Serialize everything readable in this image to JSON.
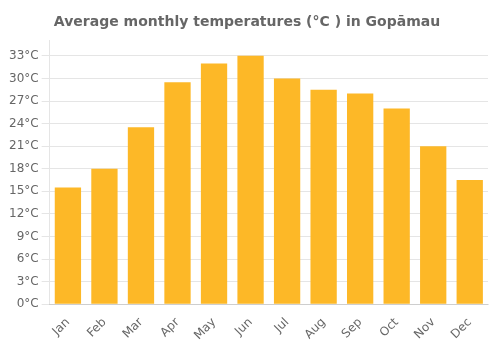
{
  "chart_data": {
    "type": "bar",
    "title": "Average monthly temperatures (°C ) in Gopāmau",
    "categories": [
      "Jan",
      "Feb",
      "Mar",
      "Apr",
      "May",
      "Jun",
      "Jul",
      "Aug",
      "Sep",
      "Oct",
      "Nov",
      "Dec"
    ],
    "values": [
      15.5,
      18.0,
      23.5,
      29.5,
      32.0,
      33.0,
      30.0,
      28.5,
      28.0,
      26.0,
      21.0,
      16.5
    ],
    "color": "#FDB827",
    "ylim": [
      0,
      35
    ],
    "yticks": [
      {
        "value": 0,
        "label": "0°C"
      },
      {
        "value": 3,
        "label": "3°C"
      },
      {
        "value": 6,
        "label": "6°C"
      },
      {
        "value": 9,
        "label": "9°C"
      },
      {
        "value": 12,
        "label": "12°C"
      },
      {
        "value": 15,
        "label": "15°C"
      },
      {
        "value": 18,
        "label": "18°C"
      },
      {
        "value": 21,
        "label": "21°C"
      },
      {
        "value": 24,
        "label": "24°C"
      },
      {
        "value": 27,
        "label": "27°C"
      },
      {
        "value": 30,
        "label": "30°C"
      },
      {
        "value": 33,
        "label": "33°C"
      }
    ],
    "grid": true
  }
}
